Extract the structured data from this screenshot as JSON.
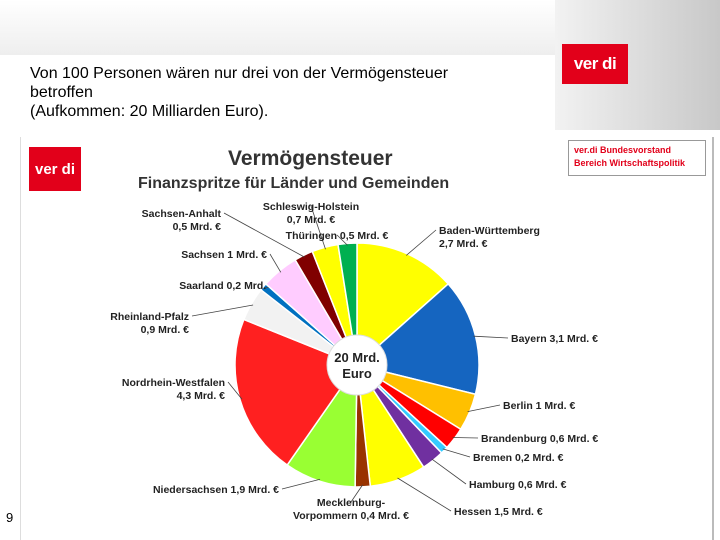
{
  "slide": {
    "title_lines": [
      "Von 100 Personen wären nur drei von der Vermögensteuer",
      "betroffen",
      "(Aufkommen: 20 Milliarden Euro)."
    ],
    "logo_text": "ver di",
    "page_number": "9"
  },
  "chart_meta": {
    "logo_text": "ver di",
    "source_lines": [
      "ver.di Bundesvorstand",
      "Bereich Wirtschaftspolitik"
    ]
  },
  "chart_data": {
    "type": "pie",
    "title": "Vermögensteuer",
    "subtitle": "Finanzspritze für Länder und Gemeinden",
    "center_label": [
      "20 Mrd.",
      "Euro"
    ],
    "total": 20,
    "unit": "Mrd. €",
    "slices": [
      {
        "name": "Baden-Württemberg",
        "value": 2.7,
        "label_lines": [
          "Baden-Württemberg",
          "2,7 Mrd. €"
        ],
        "color": "#ffff00"
      },
      {
        "name": "Bayern",
        "value": 3.1,
        "label_lines": [
          "Bayern 3,1 Mrd. €"
        ],
        "color": "#1565c0"
      },
      {
        "name": "Berlin",
        "value": 1.0,
        "label_lines": [
          "Berlin 1 Mrd. €"
        ],
        "color": "#ffc000"
      },
      {
        "name": "Brandenburg",
        "value": 0.6,
        "label_lines": [
          "Brandenburg 0,6 Mrd. €"
        ],
        "color": "#ff0000"
      },
      {
        "name": "Bremen",
        "value": 0.2,
        "label_lines": [
          "Bremen 0,2 Mrd. €"
        ],
        "color": "#33ccff"
      },
      {
        "name": "Hamburg",
        "value": 0.6,
        "label_lines": [
          "Hamburg 0,6 Mrd. €"
        ],
        "color": "#7030a0"
      },
      {
        "name": "Hessen",
        "value": 1.5,
        "label_lines": [
          "Hessen 1,5 Mrd. €"
        ],
        "color": "#ffff00"
      },
      {
        "name": "Mecklenburg-Vorpommern",
        "value": 0.4,
        "label_lines": [
          "Mecklenburg-",
          "Vorpommern 0,4 Mrd. €"
        ],
        "color": "#993300"
      },
      {
        "name": "Niedersachsen",
        "value": 1.9,
        "label_lines": [
          "Niedersachsen 1,9 Mrd. €"
        ],
        "color": "#99ff33"
      },
      {
        "name": "Nordrhein-Westfalen",
        "value": 4.3,
        "label_lines": [
          "Nordrhein-Westfalen",
          "4,3 Mrd. €"
        ],
        "color": "#ff2020"
      },
      {
        "name": "Rheinland-Pfalz",
        "value": 0.9,
        "label_lines": [
          "Rheinland-Pfalz",
          "0,9 Mrd. €"
        ],
        "color": "#f2f2f2"
      },
      {
        "name": "Saarland",
        "value": 0.2,
        "label_lines": [
          "Saarland 0,2 Mrd. €"
        ],
        "color": "#0070c0"
      },
      {
        "name": "Sachsen",
        "value": 1.0,
        "label_lines": [
          "Sachsen 1 Mrd. €"
        ],
        "color": "#ffccff"
      },
      {
        "name": "Sachsen-Anhalt",
        "value": 0.5,
        "label_lines": [
          "Sachsen-Anhalt",
          "0,5 Mrd. €"
        ],
        "color": "#800000"
      },
      {
        "name": "Schleswig-Holstein",
        "value": 0.7,
        "label_lines": [
          "Schleswig-Holstein",
          "0,7 Mrd. €"
        ],
        "color": "#ffff00"
      },
      {
        "name": "Thüringen",
        "value": 0.5,
        "label_lines": [
          "Thüringen 0,5 Mrd. €"
        ],
        "color": "#00b050"
      }
    ]
  }
}
